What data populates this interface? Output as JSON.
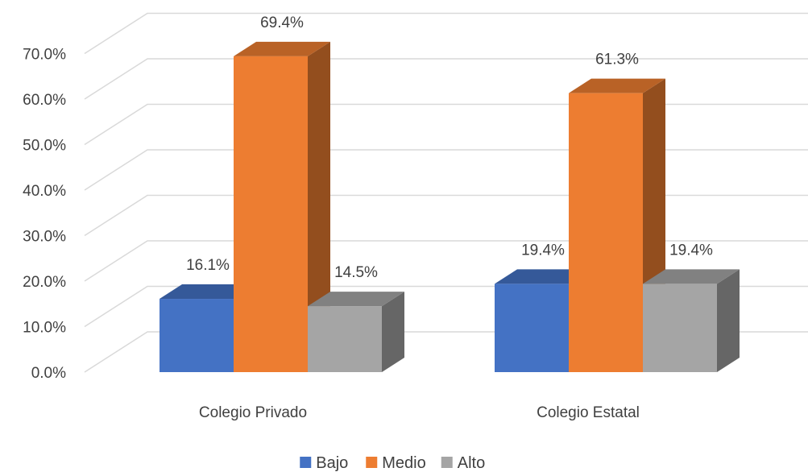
{
  "chart_data": {
    "type": "bar",
    "categories": [
      "Colegio Privado",
      "Colegio Estatal"
    ],
    "series": [
      {
        "name": "Bajo",
        "values": [
          16.1,
          19.4
        ],
        "labels": [
          "16.1%",
          "19.4%"
        ],
        "color": "#4472C4"
      },
      {
        "name": "Medio",
        "values": [
          69.4,
          61.3
        ],
        "labels": [
          "69.4%",
          "61.3%"
        ],
        "color": "#ED7D31"
      },
      {
        "name": "Alto",
        "values": [
          14.5,
          19.4
        ],
        "labels": [
          "14.5%",
          "19.4%"
        ],
        "color": "#A5A5A5"
      }
    ],
    "y_ticks": [
      "0.0%",
      "10.0%",
      "20.0%",
      "30.0%",
      "40.0%",
      "50.0%",
      "60.0%",
      "70.0%"
    ],
    "ylim": [
      0,
      70
    ],
    "grid": true,
    "legend_position": "bottom",
    "bar_style": "3d",
    "title": "",
    "xlabel": "",
    "ylabel": ""
  }
}
